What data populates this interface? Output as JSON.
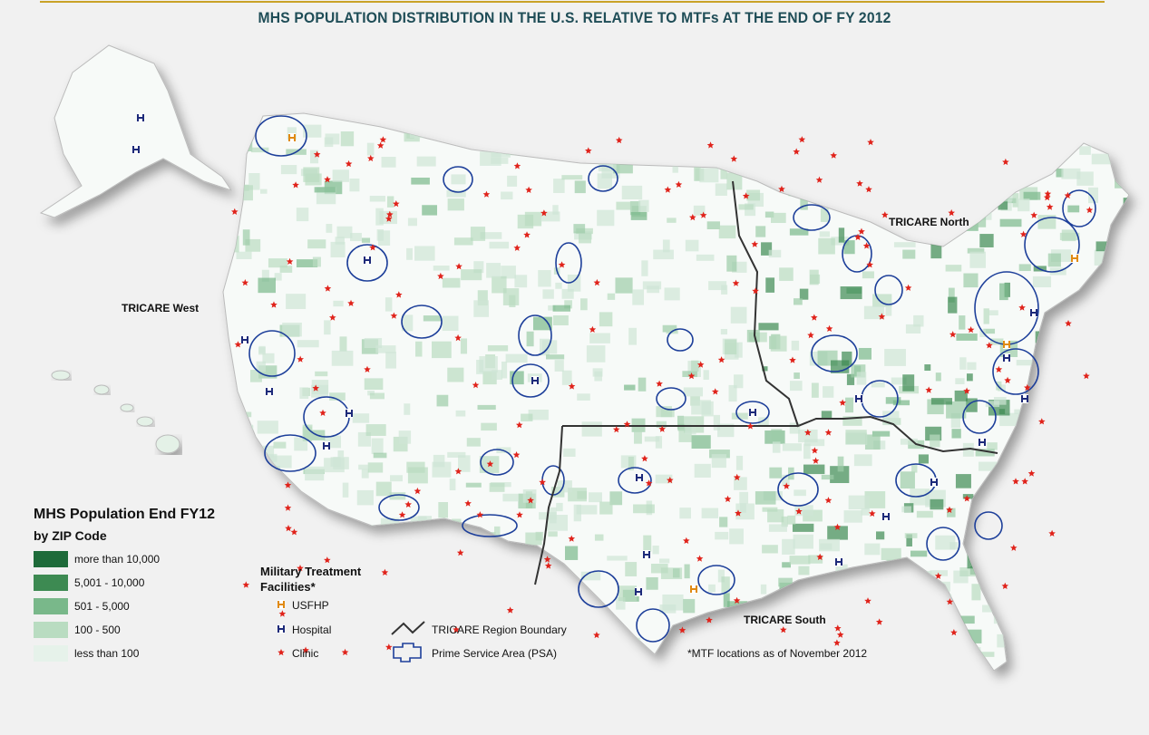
{
  "header": {
    "title": "MHS POPULATION DISTRIBUTION IN THE U.S. RELATIVE TO MTFs AT THE END OF FY 2012"
  },
  "regions": [
    "TRICARE West",
    "TRICARE North",
    "TRICARE South"
  ],
  "population_legend": {
    "title": "MHS Population End FY12",
    "subtitle": "by ZIP Code",
    "items": [
      "more than 10,000",
      "5,001 - 10,000",
      "501 - 5,000",
      "100 - 500",
      "less than 100"
    ]
  },
  "mtf_legend": {
    "title": "Military Treatment Facilities*",
    "items": [
      "USFHP",
      "Hospital",
      "Clinic"
    ]
  },
  "boundary_legend": [
    "TRICARE Region Boundary",
    "Prime Service Area (PSA)"
  ],
  "footnote": "*MTF locations as of November 2012"
}
